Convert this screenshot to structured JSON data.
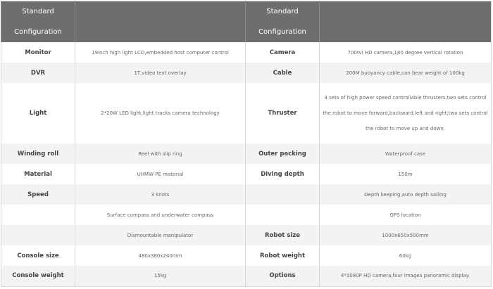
{
  "header": {
    "left_title": "Standard Configuration",
    "right_title": "Standard Configuration"
  },
  "rows": [
    {
      "k1": "Monitor",
      "v1": "19inch high light LCD,embedded host computer control",
      "k2": "Camera",
      "v2": "700tvl HD camera,180 degree vertical rotation"
    },
    {
      "k1": "DVR",
      "v1": "1T,video text overlay",
      "k2": "Cable",
      "v2": "200M buoyancy cable,can bear weight of 100kg"
    },
    {
      "k1": "Light",
      "v1": "2*20W LED light,light tracks camera technology",
      "k2": "Thruster",
      "v2": "4 sets of high power speed controllable thrusters.two sets control the robot to move forward,backward,left and right;two sets control the robot to move up and down."
    },
    {
      "k1": "Winding roll",
      "v1": "Reel with slip ring",
      "k2": "Outer packing",
      "v2": "Waterproof case"
    },
    {
      "k1": "Material",
      "v1": "UHMW-PE material",
      "k2": "Diving depth",
      "v2": "150m"
    },
    {
      "k1": "Speed",
      "v1": "3 knots",
      "k2": "",
      "v2": "Depth keeping,auto depth sailing"
    },
    {
      "k1": "",
      "v1": "Surface compass and underwater compass",
      "k2": "",
      "v2": "GPS location"
    },
    {
      "k1": "",
      "v1": "Dismountable manipulator",
      "k2": "Robot size",
      "v2": "1000x650x500mm"
    },
    {
      "k1": "Console size",
      "v1": "480x380x240mm",
      "k2": "Robot weight",
      "v2": "60kg"
    },
    {
      "k1": "Console weight",
      "v1": "15kg",
      "k2": "Options",
      "v2": "4*1080P HD camera,four images panoramic display."
    }
  ]
}
